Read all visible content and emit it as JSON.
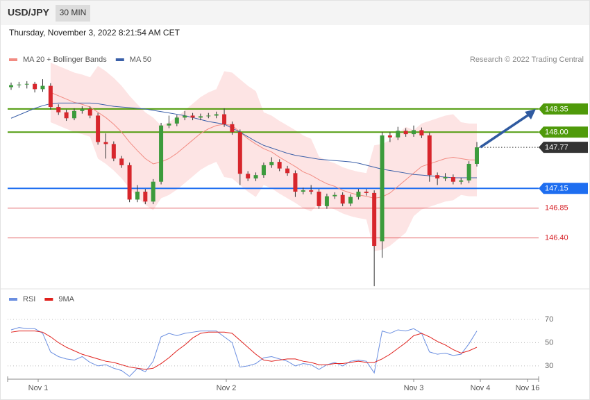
{
  "chart_data": [
    {
      "type": "candlestick",
      "title": "USD/JPY",
      "subtitle": "30 MIN",
      "timestamp": "Thursday, November 3, 2022 8:21:54 AM CET",
      "source": "Research © 2022 Trading Central",
      "up_color": "#3c9b3c",
      "down_color": "#d7262c",
      "ylim": [
        145.64,
        149.62
      ],
      "candles": [
        [
          148.68,
          148.75,
          148.64,
          148.71
        ],
        [
          148.71,
          148.76,
          148.67,
          148.72
        ],
        [
          148.72,
          148.77,
          148.66,
          148.73
        ],
        [
          148.73,
          148.76,
          148.6,
          148.65
        ],
        [
          148.65,
          148.8,
          148.61,
          148.7
        ],
        [
          148.7,
          148.74,
          148.34,
          148.38
        ],
        [
          148.38,
          148.42,
          148.26,
          148.3
        ],
        [
          148.3,
          148.34,
          148.17,
          148.21
        ],
        [
          148.21,
          148.36,
          148.18,
          148.32
        ],
        [
          148.32,
          148.39,
          148.28,
          148.35
        ],
        [
          148.35,
          148.39,
          148.21,
          148.25
        ],
        [
          148.25,
          148.29,
          147.81,
          147.85
        ],
        [
          147.85,
          147.98,
          147.6,
          147.82
        ],
        [
          147.82,
          147.86,
          147.56,
          147.6
        ],
        [
          147.6,
          147.64,
          147.46,
          147.5
        ],
        [
          147.5,
          147.54,
          146.94,
          146.98
        ],
        [
          146.98,
          147.2,
          146.94,
          147.1
        ],
        [
          147.1,
          147.14,
          146.91,
          146.95
        ],
        [
          146.95,
          147.29,
          146.91,
          147.25
        ],
        [
          147.25,
          148.14,
          147.21,
          148.1
        ],
        [
          148.1,
          148.25,
          148.06,
          148.13
        ],
        [
          148.13,
          148.26,
          148.09,
          148.22
        ],
        [
          148.22,
          148.32,
          148.18,
          148.25
        ],
        [
          148.25,
          148.29,
          148.18,
          148.22
        ],
        [
          148.22,
          148.28,
          148.18,
          148.24
        ],
        [
          148.24,
          148.29,
          148.21,
          148.25
        ],
        [
          148.25,
          148.31,
          148.21,
          148.27
        ],
        [
          148.27,
          148.36,
          148.08,
          148.12
        ],
        [
          148.12,
          148.16,
          147.96,
          148
        ],
        [
          148,
          148.04,
          147.2,
          147.37
        ],
        [
          147.37,
          147.41,
          147.26,
          147.3
        ],
        [
          147.3,
          147.39,
          147.26,
          147.35
        ],
        [
          147.35,
          147.54,
          147.31,
          147.5
        ],
        [
          147.5,
          147.62,
          147.46,
          147.55
        ],
        [
          147.55,
          147.59,
          147.41,
          147.45
        ],
        [
          147.45,
          147.49,
          147.34,
          147.38
        ],
        [
          147.38,
          147.42,
          147.02,
          147.1
        ],
        [
          147.1,
          147.16,
          147.06,
          147.12
        ],
        [
          147.12,
          147.2,
          147.06,
          147.1
        ],
        [
          147.1,
          147.14,
          146.84,
          146.88
        ],
        [
          146.88,
          147.07,
          146.84,
          147.03
        ],
        [
          147.03,
          147.09,
          146.99,
          147.05
        ],
        [
          147.05,
          147.09,
          146.88,
          146.92
        ],
        [
          146.92,
          147.06,
          146.88,
          147.02
        ],
        [
          147.02,
          147.14,
          146.98,
          147.1
        ],
        [
          147.1,
          147.14,
          147.04,
          147.08
        ],
        [
          147.08,
          147.12,
          145.67,
          146.28
        ],
        [
          146.35,
          148,
          146.1,
          147.95
        ],
        [
          147.95,
          148,
          147.85,
          147.92
        ],
        [
          147.92,
          148.08,
          147.88,
          148.02
        ],
        [
          148.02,
          148.06,
          147.93,
          147.97
        ],
        [
          147.97,
          148.1,
          147.93,
          148.03
        ],
        [
          148.03,
          148.07,
          147.91,
          147.95
        ],
        [
          147.95,
          147.99,
          147.25,
          147.35
        ],
        [
          147.35,
          147.39,
          147.2,
          147.3
        ],
        [
          147.3,
          147.38,
          147.26,
          147.32
        ],
        [
          147.32,
          147.36,
          147.21,
          147.25
        ],
        [
          147.25,
          147.31,
          147.21,
          147.27
        ],
        [
          147.27,
          147.56,
          147.23,
          147.52
        ],
        [
          147.52,
          147.85,
          147.48,
          147.77
        ]
      ],
      "series": [
        {
          "name": "MA 20 + Bollinger Bands",
          "color": "#f28b82",
          "band_color": "#fde4e4",
          "values": [
            null,
            null,
            null,
            null,
            null,
            148.6,
            148.55,
            148.5,
            148.45,
            148.42,
            148.38,
            148.3,
            148.22,
            148.12,
            148,
            147.85,
            147.72,
            147.6,
            147.52,
            147.55,
            147.6,
            147.68,
            147.78,
            147.88,
            147.98,
            148.05,
            148.1,
            148.12,
            148.1,
            148,
            147.9,
            147.82,
            147.75,
            147.7,
            147.62,
            147.55,
            147.48,
            147.4,
            147.35,
            147.28,
            147.22,
            147.18,
            147.12,
            147.08,
            147.05,
            147.03,
            147,
            147.02,
            147.08,
            147.18,
            147.28,
            147.38,
            147.48,
            147.52,
            147.56,
            147.6,
            147.62,
            147.6,
            147.58,
            147.58
          ],
          "upper": [
            null,
            null,
            null,
            null,
            null,
            149.05,
            149,
            148.95,
            148.9,
            148.87,
            148.83,
            149,
            148.92,
            148.82,
            148.7,
            148.55,
            148.42,
            148.3,
            148.22,
            148.1,
            148.15,
            148.23,
            148.33,
            148.43,
            148.53,
            148.6,
            148.65,
            148.92,
            148.9,
            148.8,
            148.7,
            148.62,
            148.3,
            148.25,
            148.17,
            148.1,
            148.03,
            147.95,
            147.9,
            147.63,
            147.57,
            147.53,
            147.47,
            147.43,
            147.4,
            147.38,
            147.8,
            147.82,
            147.88,
            147.98,
            148.08,
            148.03,
            148.13,
            148.17,
            148.21,
            148.25,
            148.27,
            148.15,
            148.13,
            148.13
          ],
          "lower": [
            null,
            null,
            null,
            null,
            null,
            148.15,
            148.1,
            148.05,
            148,
            147.97,
            147.93,
            147.6,
            147.52,
            147.42,
            147.3,
            147.15,
            147.02,
            146.9,
            146.82,
            147,
            147.05,
            147.13,
            147.23,
            147.33,
            147.43,
            147.5,
            147.55,
            147.32,
            147.3,
            147.2,
            147.1,
            147.02,
            147.2,
            147.15,
            147.07,
            147,
            146.93,
            146.85,
            146.8,
            146.93,
            146.87,
            146.83,
            146.77,
            146.73,
            146.7,
            146.68,
            146.2,
            146.22,
            146.28,
            146.38,
            146.48,
            146.73,
            146.83,
            146.87,
            146.91,
            146.95,
            146.97,
            147.05,
            147.03,
            147.03
          ]
        },
        {
          "name": "MA 50",
          "color": "#3a5fa8",
          "values": [
            148.21,
            148.26,
            148.31,
            148.36,
            148.4,
            148.43,
            148.44,
            148.44,
            148.44,
            148.44,
            148.44,
            148.43,
            148.41,
            148.39,
            148.38,
            148.37,
            148.36,
            148.35,
            148.33,
            148.31,
            148.29,
            148.27,
            148.25,
            148.22,
            148.19,
            148.16,
            148.14,
            148.12,
            148.06,
            148,
            147.93,
            147.86,
            147.8,
            147.76,
            147.72,
            147.68,
            147.65,
            147.63,
            147.61,
            147.59,
            147.58,
            147.57,
            147.56,
            147.55,
            147.53,
            147.5,
            147.47,
            147.44,
            147.42,
            147.4,
            147.38,
            147.36,
            147.35,
            147.34,
            147.33,
            147.32,
            147.31,
            147.31,
            147.31,
            147.31
          ]
        }
      ],
      "levels": [
        {
          "value": 148.35,
          "color": "#4f9a0a",
          "boxed": true,
          "line": "solid"
        },
        {
          "value": 148,
          "label": "148.00",
          "color": "#4f9a0a",
          "boxed": true,
          "line": "solid"
        },
        {
          "value": 147.77,
          "color": "#333333",
          "boxed": true,
          "line": "dotted"
        },
        {
          "value": 147.15,
          "color": "#1e6ef0",
          "boxed": true,
          "line": "solid"
        },
        {
          "value": 146.85,
          "color": "#d7262c",
          "boxed": false,
          "line": "thin"
        },
        {
          "value": 146.4,
          "label": "146.40",
          "color": "#d7262c",
          "boxed": false,
          "line": "thin"
        }
      ]
    },
    {
      "type": "line",
      "ylim": [
        18,
        95
      ],
      "yticks": [
        30,
        50,
        70
      ],
      "x_labels": [
        "Nov 1",
        "Nov 2",
        "Nov 3",
        "Nov 4",
        "Nov 16"
      ],
      "series": [
        {
          "name": "RSI",
          "color": "#6a8ee0",
          "values": [
            61,
            63,
            62,
            62,
            58,
            42,
            38,
            36,
            35,
            38,
            33,
            30,
            31,
            28,
            26,
            21,
            28,
            25,
            34,
            55,
            58,
            56,
            58,
            59,
            60,
            60,
            60,
            55,
            50,
            29,
            30,
            32,
            37,
            38,
            36,
            34,
            30,
            32,
            31,
            27,
            31,
            33,
            30,
            34,
            35,
            34,
            24,
            60,
            58,
            61,
            60,
            62,
            58,
            42,
            40,
            41,
            39,
            40,
            49,
            60
          ]
        },
        {
          "name": "9MA",
          "color": "#e0201c",
          "values": [
            59,
            60,
            60,
            60,
            59,
            55,
            50,
            46,
            43,
            40,
            38,
            36,
            34,
            33,
            31,
            29,
            28,
            27,
            28,
            32,
            37,
            43,
            48,
            54,
            58,
            59,
            59,
            59,
            58,
            52,
            46,
            40,
            35,
            34,
            35,
            36,
            36,
            34,
            33,
            31,
            31,
            32,
            32,
            33,
            34,
            33,
            33,
            36,
            40,
            45,
            50,
            56,
            58,
            55,
            51,
            48,
            44,
            41,
            43,
            46
          ]
        }
      ]
    }
  ]
}
